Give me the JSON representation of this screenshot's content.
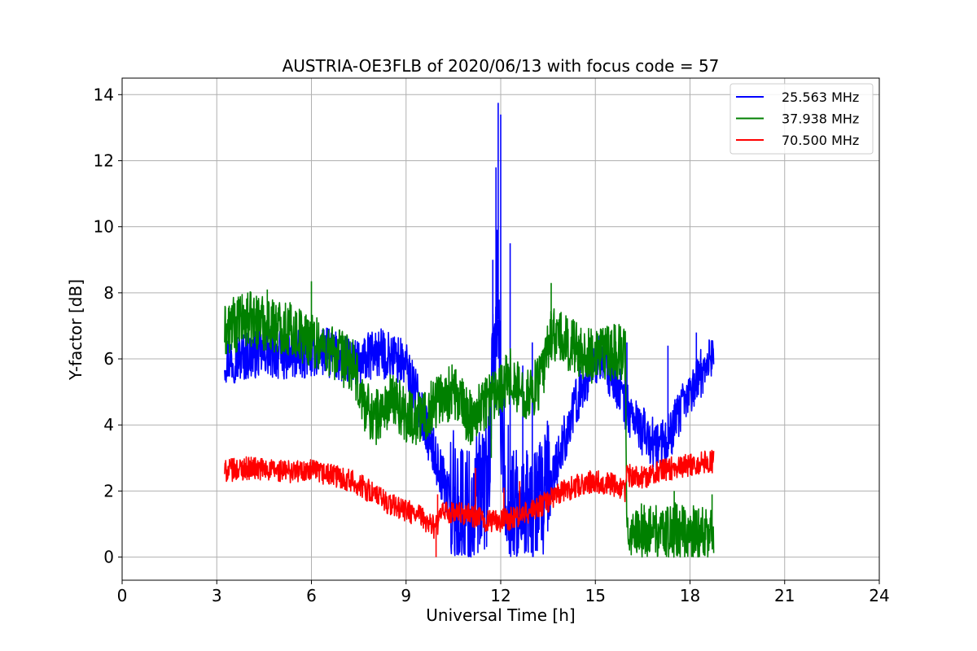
{
  "chart_data": {
    "type": "line",
    "title": "AUSTRIA-OE3FLB of 2020/06/13 with focus code = 57",
    "xlabel": "Universal Time [h]",
    "ylabel": "Y-factor [dB]",
    "xlim": [
      0,
      24
    ],
    "ylim": [
      -0.7,
      14.5
    ],
    "xticks": [
      "0",
      "3",
      "6",
      "9",
      "12",
      "15",
      "18",
      "21",
      "24"
    ],
    "yticks": [
      "0",
      "2",
      "4",
      "6",
      "8",
      "10",
      "12",
      "14"
    ],
    "grid": true,
    "legend_position": "top-right",
    "series": [
      {
        "name": "25.563 MHz",
        "color": "#0000ff",
        "noise": 0.75,
        "x": [
          3.25,
          3.5,
          4.0,
          4.5,
          5.0,
          5.5,
          6.0,
          6.5,
          7.0,
          7.5,
          8.0,
          8.5,
          9.0,
          9.3,
          9.6,
          10.0,
          10.3,
          10.6,
          11.0,
          11.3,
          11.6,
          11.8,
          11.9,
          12.0,
          12.2,
          12.5,
          12.8,
          13.0,
          13.2,
          13.5,
          14.0,
          14.5,
          15.0,
          15.3,
          15.7,
          16.0,
          16.5,
          17.0,
          17.3,
          17.6,
          18.0,
          18.3,
          18.6,
          18.75
        ],
        "y": [
          6.0,
          6.0,
          6.1,
          6.2,
          6.1,
          6.1,
          6.2,
          6.2,
          6.0,
          5.8,
          6.2,
          6.1,
          5.8,
          5.0,
          4.0,
          2.8,
          2.0,
          1.5,
          1.3,
          1.5,
          2.5,
          6.0,
          8.0,
          4.0,
          2.0,
          1.2,
          1.0,
          1.5,
          1.2,
          2.0,
          3.5,
          5.0,
          6.0,
          5.8,
          5.2,
          4.5,
          3.8,
          3.3,
          3.6,
          4.2,
          5.0,
          5.5,
          6.0,
          6.2
        ],
        "spikes": [
          [
            11.75,
            9.0
          ],
          [
            11.85,
            11.8
          ],
          [
            11.92,
            13.75
          ],
          [
            12.0,
            13.4
          ],
          [
            12.3,
            9.5
          ],
          [
            13.0,
            6.5
          ],
          [
            12.7,
            5.8
          ],
          [
            16.0,
            6.5
          ],
          [
            17.3,
            6.4
          ],
          [
            18.2,
            6.8
          ]
        ]
      },
      {
        "name": "37.938 MHz",
        "color": "#008000",
        "noise": 0.85,
        "x": [
          3.25,
          3.5,
          4.0,
          4.5,
          5.0,
          5.5,
          6.0,
          6.5,
          7.0,
          7.3,
          7.6,
          8.0,
          8.3,
          8.6,
          9.0,
          9.5,
          10.0,
          10.5,
          11.0,
          11.3,
          11.6,
          12.0,
          12.3,
          12.6,
          13.0,
          13.3,
          13.6,
          14.0,
          14.5,
          15.0,
          15.5,
          15.95,
          16.0,
          16.5,
          17.0,
          17.5,
          18.0,
          18.5,
          18.75
        ],
        "y": [
          6.8,
          7.0,
          7.2,
          7.1,
          7.0,
          6.8,
          6.6,
          6.3,
          6.0,
          5.8,
          4.8,
          4.2,
          4.5,
          4.8,
          4.3,
          4.2,
          4.8,
          5.0,
          4.2,
          4.5,
          4.8,
          5.2,
          5.5,
          5.0,
          5.0,
          5.4,
          6.8,
          6.5,
          6.3,
          6.0,
          6.2,
          6.2,
          0.5,
          0.8,
          0.7,
          0.8,
          0.7,
          0.8,
          0.8
        ],
        "spikes": [
          [
            4.6,
            8.1
          ],
          [
            6.0,
            8.35
          ],
          [
            13.6,
            8.3
          ],
          [
            14.3,
            7.2
          ],
          [
            17.5,
            2.0
          ],
          [
            18.7,
            1.9
          ],
          [
            11.7,
            3.0
          ]
        ]
      },
      {
        "name": "70.500 MHz",
        "color": "#ff0000",
        "noise": 0.35,
        "x": [
          3.25,
          4.0,
          5.0,
          6.0,
          6.5,
          7.0,
          7.5,
          8.0,
          8.5,
          9.0,
          9.5,
          9.9,
          10.0,
          10.2,
          10.5,
          11.0,
          11.5,
          12.0,
          12.5,
          13.0,
          13.5,
          14.0,
          14.5,
          15.0,
          15.5,
          15.95,
          16.0,
          16.5,
          17.0,
          17.5,
          18.0,
          18.5,
          18.75
        ],
        "y": [
          2.6,
          2.7,
          2.6,
          2.6,
          2.5,
          2.4,
          2.2,
          1.9,
          1.6,
          1.4,
          1.2,
          0.9,
          1.0,
          1.4,
          1.3,
          1.3,
          1.1,
          1.1,
          1.2,
          1.4,
          1.7,
          2.0,
          2.2,
          2.3,
          2.2,
          2.0,
          2.5,
          2.4,
          2.6,
          2.7,
          2.8,
          2.9,
          2.9
        ],
        "spikes": [
          [
            9.95,
            0.0
          ],
          [
            10.0,
            1.9
          ],
          [
            11.2,
            2.7
          ],
          [
            12.1,
            2.1
          ],
          [
            12.6,
            2.3
          ],
          [
            15.2,
            2.4
          ]
        ]
      }
    ]
  }
}
